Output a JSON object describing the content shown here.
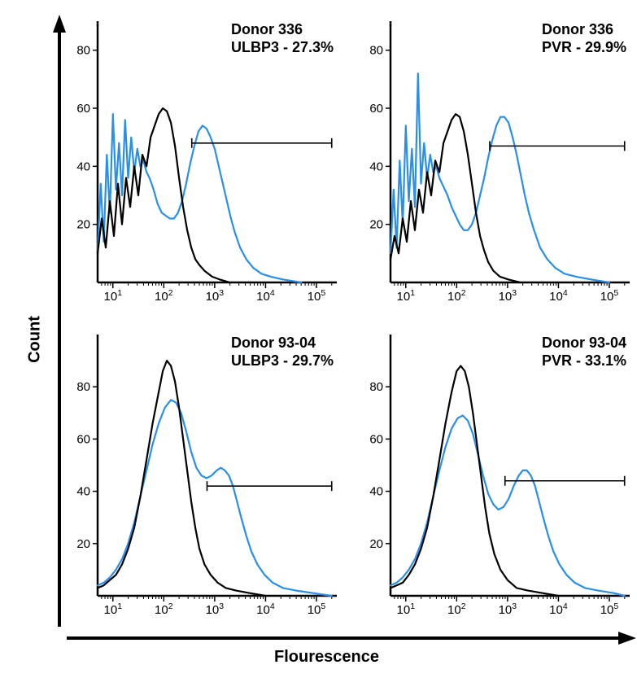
{
  "axis_labels": {
    "x": "Flourescence",
    "y": "Count"
  },
  "layout": {
    "rows": 2,
    "cols": 2,
    "panel_bg": "#ffffff",
    "axis_color": "#000000",
    "axis_stroke_width": 2.5,
    "tick_font_size": 15,
    "title_font_size": 18,
    "title_font_weight": "700",
    "arrow_stroke_width": 4
  },
  "colors": {
    "control_curve": "#000000",
    "stained_curve": "#2a8fe5",
    "gate_line": "#000000"
  },
  "x_axis": {
    "scale": "log",
    "min_exp": 0.7,
    "max_exp": 5.4,
    "tick_exps": [
      1,
      2,
      3,
      4,
      5
    ],
    "tick_labels": [
      "10¹",
      "10²",
      "10³",
      "10⁴",
      "10⁵"
    ]
  },
  "panels": [
    {
      "title_line1": "Donor 336",
      "title_line2": "ULBP3 - 27.3%",
      "y": {
        "min": 0,
        "max": 90,
        "ticks": [
          20,
          40,
          60,
          80
        ],
        "tick_labels": [
          "20",
          "40",
          "60",
          "80"
        ]
      },
      "gate": {
        "x_start_exp": 2.55,
        "x_end_exp": 5.3,
        "y": 48,
        "cap": 6
      },
      "control": {
        "stroke": "#000000",
        "pts": [
          [
            0.7,
            10
          ],
          [
            0.78,
            22
          ],
          [
            0.86,
            12
          ],
          [
            0.94,
            28
          ],
          [
            1.02,
            16
          ],
          [
            1.1,
            34
          ],
          [
            1.18,
            20
          ],
          [
            1.26,
            36
          ],
          [
            1.34,
            26
          ],
          [
            1.42,
            40
          ],
          [
            1.5,
            30
          ],
          [
            1.58,
            44
          ],
          [
            1.66,
            40
          ],
          [
            1.74,
            50
          ],
          [
            1.82,
            54
          ],
          [
            1.9,
            58
          ],
          [
            1.98,
            60
          ],
          [
            2.06,
            59
          ],
          [
            2.14,
            55
          ],
          [
            2.22,
            47
          ],
          [
            2.3,
            36
          ],
          [
            2.38,
            26
          ],
          [
            2.46,
            18
          ],
          [
            2.54,
            12
          ],
          [
            2.62,
            8
          ],
          [
            2.7,
            6
          ],
          [
            2.8,
            4
          ],
          [
            2.95,
            2
          ],
          [
            3.1,
            1
          ],
          [
            3.3,
            0
          ]
        ]
      },
      "stained": {
        "stroke": "#2a8fe5",
        "pts": [
          [
            0.7,
            11
          ],
          [
            0.76,
            34
          ],
          [
            0.82,
            14
          ],
          [
            0.88,
            44
          ],
          [
            0.94,
            24
          ],
          [
            1.0,
            58
          ],
          [
            1.06,
            32
          ],
          [
            1.12,
            48
          ],
          [
            1.18,
            30
          ],
          [
            1.24,
            56
          ],
          [
            1.3,
            36
          ],
          [
            1.36,
            50
          ],
          [
            1.42,
            38
          ],
          [
            1.48,
            46
          ],
          [
            1.54,
            40
          ],
          [
            1.6,
            42
          ],
          [
            1.66,
            38
          ],
          [
            1.72,
            36
          ],
          [
            1.8,
            32
          ],
          [
            1.88,
            27
          ],
          [
            1.96,
            24
          ],
          [
            2.04,
            23
          ],
          [
            2.12,
            22
          ],
          [
            2.2,
            22
          ],
          [
            2.28,
            24
          ],
          [
            2.36,
            28
          ],
          [
            2.44,
            34
          ],
          [
            2.52,
            41
          ],
          [
            2.6,
            47
          ],
          [
            2.68,
            52
          ],
          [
            2.76,
            54
          ],
          [
            2.84,
            53
          ],
          [
            2.92,
            50
          ],
          [
            3.0,
            46
          ],
          [
            3.08,
            40
          ],
          [
            3.16,
            34
          ],
          [
            3.24,
            28
          ],
          [
            3.32,
            22
          ],
          [
            3.4,
            17
          ],
          [
            3.5,
            12
          ],
          [
            3.62,
            8
          ],
          [
            3.76,
            5
          ],
          [
            3.92,
            3
          ],
          [
            4.1,
            2
          ],
          [
            4.35,
            1
          ],
          [
            4.7,
            0
          ]
        ]
      }
    },
    {
      "title_line1": "Donor 336",
      "title_line2": "PVR - 29.9%",
      "y": {
        "min": 0,
        "max": 90,
        "ticks": [
          20,
          40,
          60,
          80
        ],
        "tick_labels": [
          "20",
          "40",
          "60",
          "80"
        ]
      },
      "gate": {
        "x_start_exp": 2.65,
        "x_end_exp": 5.3,
        "y": 47,
        "cap": 6
      },
      "control": {
        "stroke": "#000000",
        "pts": [
          [
            0.7,
            8
          ],
          [
            0.78,
            16
          ],
          [
            0.86,
            10
          ],
          [
            0.94,
            22
          ],
          [
            1.02,
            14
          ],
          [
            1.1,
            28
          ],
          [
            1.18,
            18
          ],
          [
            1.26,
            32
          ],
          [
            1.34,
            24
          ],
          [
            1.42,
            38
          ],
          [
            1.5,
            30
          ],
          [
            1.58,
            42
          ],
          [
            1.66,
            38
          ],
          [
            1.74,
            48
          ],
          [
            1.82,
            52
          ],
          [
            1.9,
            56
          ],
          [
            1.98,
            58
          ],
          [
            2.06,
            57
          ],
          [
            2.14,
            52
          ],
          [
            2.22,
            44
          ],
          [
            2.3,
            34
          ],
          [
            2.38,
            24
          ],
          [
            2.46,
            16
          ],
          [
            2.54,
            11
          ],
          [
            2.62,
            7
          ],
          [
            2.72,
            4
          ],
          [
            2.85,
            2
          ],
          [
            3.02,
            1
          ],
          [
            3.25,
            0
          ]
        ]
      },
      "stained": {
        "stroke": "#2a8fe5",
        "pts": [
          [
            0.7,
            10
          ],
          [
            0.76,
            32
          ],
          [
            0.82,
            12
          ],
          [
            0.88,
            42
          ],
          [
            0.94,
            20
          ],
          [
            1.0,
            54
          ],
          [
            1.06,
            28
          ],
          [
            1.12,
            46
          ],
          [
            1.18,
            26
          ],
          [
            1.24,
            72
          ],
          [
            1.3,
            34
          ],
          [
            1.36,
            48
          ],
          [
            1.42,
            36
          ],
          [
            1.48,
            44
          ],
          [
            1.54,
            38
          ],
          [
            1.6,
            40
          ],
          [
            1.66,
            36
          ],
          [
            1.74,
            33
          ],
          [
            1.82,
            30
          ],
          [
            1.9,
            26
          ],
          [
            1.98,
            23
          ],
          [
            2.06,
            20
          ],
          [
            2.14,
            18
          ],
          [
            2.22,
            18
          ],
          [
            2.3,
            20
          ],
          [
            2.38,
            24
          ],
          [
            2.46,
            30
          ],
          [
            2.54,
            36
          ],
          [
            2.62,
            43
          ],
          [
            2.7,
            49
          ],
          [
            2.78,
            54
          ],
          [
            2.86,
            57
          ],
          [
            2.94,
            57
          ],
          [
            3.02,
            55
          ],
          [
            3.1,
            50
          ],
          [
            3.18,
            44
          ],
          [
            3.26,
            37
          ],
          [
            3.34,
            30
          ],
          [
            3.42,
            24
          ],
          [
            3.52,
            18
          ],
          [
            3.64,
            12
          ],
          [
            3.78,
            8
          ],
          [
            3.94,
            5
          ],
          [
            4.12,
            3
          ],
          [
            4.35,
            2
          ],
          [
            4.65,
            1
          ],
          [
            5.0,
            0
          ]
        ]
      }
    },
    {
      "title_line1": "Donor 93-04",
      "title_line2": "ULBP3 - 29.7%",
      "y": {
        "min": 0,
        "max": 100,
        "ticks": [
          20,
          40,
          60,
          80
        ],
        "tick_labels": [
          "20",
          "40",
          "60",
          "80"
        ]
      },
      "gate": {
        "x_start_exp": 2.85,
        "x_end_exp": 5.3,
        "y": 42,
        "cap": 6
      },
      "control": {
        "stroke": "#000000",
        "pts": [
          [
            0.7,
            3
          ],
          [
            0.82,
            4
          ],
          [
            0.94,
            6
          ],
          [
            1.06,
            8
          ],
          [
            1.18,
            12
          ],
          [
            1.3,
            18
          ],
          [
            1.42,
            26
          ],
          [
            1.54,
            38
          ],
          [
            1.66,
            52
          ],
          [
            1.78,
            66
          ],
          [
            1.9,
            78
          ],
          [
            1.98,
            86
          ],
          [
            2.06,
            90
          ],
          [
            2.14,
            88
          ],
          [
            2.22,
            82
          ],
          [
            2.3,
            72
          ],
          [
            2.38,
            60
          ],
          [
            2.46,
            48
          ],
          [
            2.54,
            36
          ],
          [
            2.62,
            26
          ],
          [
            2.7,
            18
          ],
          [
            2.8,
            12
          ],
          [
            2.92,
            8
          ],
          [
            3.06,
            5
          ],
          [
            3.22,
            3
          ],
          [
            3.42,
            2
          ],
          [
            3.7,
            1
          ],
          [
            4.0,
            0
          ]
        ]
      },
      "stained": {
        "stroke": "#2a8fe5",
        "pts": [
          [
            0.7,
            4
          ],
          [
            0.82,
            5
          ],
          [
            0.94,
            7
          ],
          [
            1.06,
            10
          ],
          [
            1.18,
            14
          ],
          [
            1.3,
            20
          ],
          [
            1.42,
            28
          ],
          [
            1.54,
            38
          ],
          [
            1.66,
            48
          ],
          [
            1.78,
            58
          ],
          [
            1.9,
            66
          ],
          [
            2.02,
            72
          ],
          [
            2.14,
            75
          ],
          [
            2.24,
            74
          ],
          [
            2.34,
            70
          ],
          [
            2.44,
            63
          ],
          [
            2.54,
            55
          ],
          [
            2.64,
            49
          ],
          [
            2.74,
            46
          ],
          [
            2.84,
            45
          ],
          [
            2.94,
            46
          ],
          [
            3.04,
            48
          ],
          [
            3.12,
            49
          ],
          [
            3.2,
            48
          ],
          [
            3.28,
            46
          ],
          [
            3.36,
            42
          ],
          [
            3.44,
            36
          ],
          [
            3.52,
            30
          ],
          [
            3.62,
            23
          ],
          [
            3.72,
            17
          ],
          [
            3.84,
            12
          ],
          [
            3.98,
            8
          ],
          [
            4.14,
            5
          ],
          [
            4.34,
            3
          ],
          [
            4.6,
            2
          ],
          [
            4.95,
            1
          ],
          [
            5.3,
            0
          ]
        ]
      }
    },
    {
      "title_line1": "Donor 93-04",
      "title_line2": "PVR - 33.1%",
      "y": {
        "min": 0,
        "max": 100,
        "ticks": [
          20,
          40,
          60,
          80
        ],
        "tick_labels": [
          "20",
          "40",
          "60",
          "80"
        ]
      },
      "gate": {
        "x_start_exp": 2.95,
        "x_end_exp": 5.3,
        "y": 44,
        "cap": 6
      },
      "control": {
        "stroke": "#000000",
        "pts": [
          [
            0.7,
            3
          ],
          [
            0.82,
            4
          ],
          [
            0.94,
            5
          ],
          [
            1.06,
            8
          ],
          [
            1.18,
            12
          ],
          [
            1.3,
            18
          ],
          [
            1.42,
            26
          ],
          [
            1.54,
            38
          ],
          [
            1.66,
            52
          ],
          [
            1.78,
            66
          ],
          [
            1.9,
            78
          ],
          [
            2.0,
            86
          ],
          [
            2.08,
            88
          ],
          [
            2.16,
            86
          ],
          [
            2.24,
            80
          ],
          [
            2.32,
            70
          ],
          [
            2.4,
            58
          ],
          [
            2.48,
            46
          ],
          [
            2.56,
            34
          ],
          [
            2.64,
            24
          ],
          [
            2.74,
            16
          ],
          [
            2.86,
            10
          ],
          [
            3.0,
            6
          ],
          [
            3.18,
            3
          ],
          [
            3.4,
            2
          ],
          [
            3.7,
            1
          ],
          [
            4.0,
            0
          ]
        ]
      },
      "stained": {
        "stroke": "#2a8fe5",
        "pts": [
          [
            0.7,
            4
          ],
          [
            0.82,
            5
          ],
          [
            0.94,
            7
          ],
          [
            1.06,
            10
          ],
          [
            1.18,
            14
          ],
          [
            1.3,
            20
          ],
          [
            1.42,
            28
          ],
          [
            1.54,
            38
          ],
          [
            1.66,
            48
          ],
          [
            1.78,
            57
          ],
          [
            1.9,
            64
          ],
          [
            2.02,
            68
          ],
          [
            2.12,
            69
          ],
          [
            2.22,
            67
          ],
          [
            2.32,
            62
          ],
          [
            2.42,
            54
          ],
          [
            2.52,
            46
          ],
          [
            2.62,
            39
          ],
          [
            2.72,
            35
          ],
          [
            2.82,
            33
          ],
          [
            2.92,
            34
          ],
          [
            3.02,
            37
          ],
          [
            3.12,
            42
          ],
          [
            3.22,
            46
          ],
          [
            3.3,
            48
          ],
          [
            3.38,
            48
          ],
          [
            3.46,
            46
          ],
          [
            3.54,
            42
          ],
          [
            3.62,
            36
          ],
          [
            3.7,
            30
          ],
          [
            3.8,
            23
          ],
          [
            3.9,
            17
          ],
          [
            4.02,
            12
          ],
          [
            4.16,
            8
          ],
          [
            4.32,
            5
          ],
          [
            4.52,
            3
          ],
          [
            4.78,
            2
          ],
          [
            5.1,
            1
          ],
          [
            5.3,
            0
          ]
        ]
      }
    }
  ]
}
